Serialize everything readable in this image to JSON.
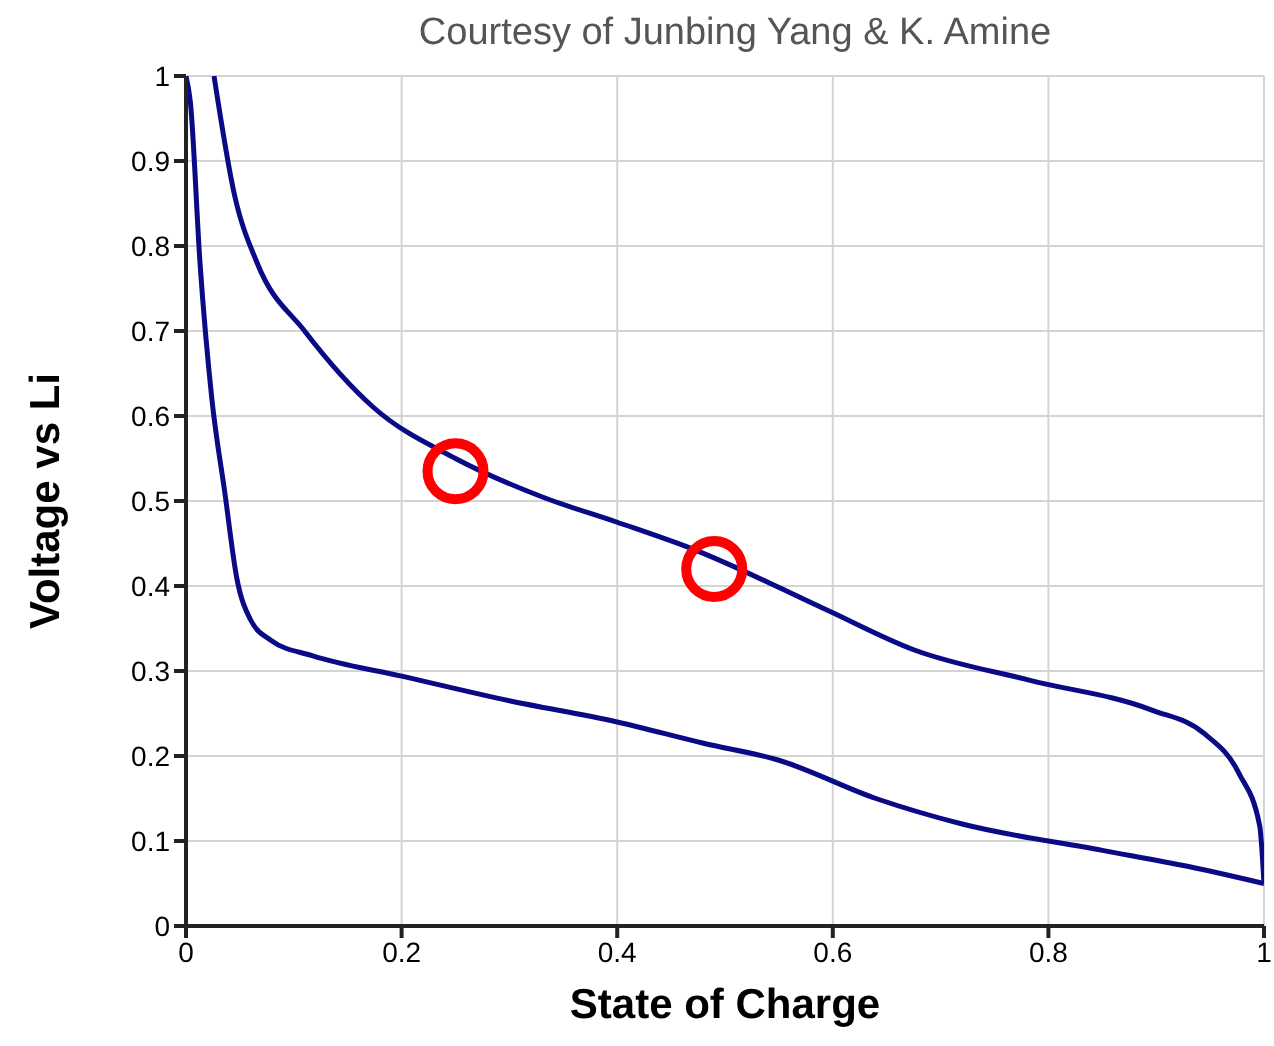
{
  "chart_data": {
    "type": "line",
    "title": "Courtesy of Junbing Yang & K. Amine",
    "xlabel": "State of Charge",
    "ylabel": "Voltage vs Li",
    "series": [
      {
        "color": "#0a0a86",
        "x": [
          0.026,
          0.045,
          0.066,
          0.11,
          0.174,
          0.25,
          0.33,
          0.4,
          0.473,
          0.594,
          0.675,
          0.783,
          0.896,
          0.945,
          0.977,
          0.996,
          1
        ],
        "values": [
          1,
          0.86,
          0.78,
          0.7,
          0.61,
          0.55,
          0.505,
          0.475,
          0.442,
          0.372,
          0.325,
          0.289,
          0.254,
          0.226,
          0.179,
          0.118,
          0.05
        ]
      },
      {
        "color": "#0a0a86",
        "x": [
          0,
          0.004,
          0.013,
          0.024,
          0.036,
          0.047,
          0.06,
          0.079,
          0.117,
          0.2,
          0.3,
          0.4,
          0.48,
          0.55,
          0.64,
          0.72,
          0.85,
          0.93,
          1
        ],
        "values": [
          1,
          0.97,
          0.78,
          0.62,
          0.51,
          0.41,
          0.36,
          0.336,
          0.318,
          0.294,
          0.265,
          0.24,
          0.215,
          0.195,
          0.15,
          0.12,
          0.089,
          0.07,
          0.05
        ]
      },
      {
        "type": "scatter",
        "color": "#ff0000",
        "marker": "circle",
        "x": [
          0.25,
          0.49
        ],
        "values": [
          0.535,
          0.42
        ]
      }
    ],
    "marker": "none",
    "line_style": "solid",
    "grid": true,
    "xlim": [
      0,
      1
    ],
    "xticks": [
      0,
      0.2,
      0.4,
      0.6,
      0.8,
      1
    ],
    "ylim": [
      0,
      1
    ],
    "yticks": [
      0,
      0.1,
      0.2,
      0.3,
      0.4,
      0.5,
      0.6,
      0.7,
      0.8,
      0.9,
      1
    ]
  }
}
